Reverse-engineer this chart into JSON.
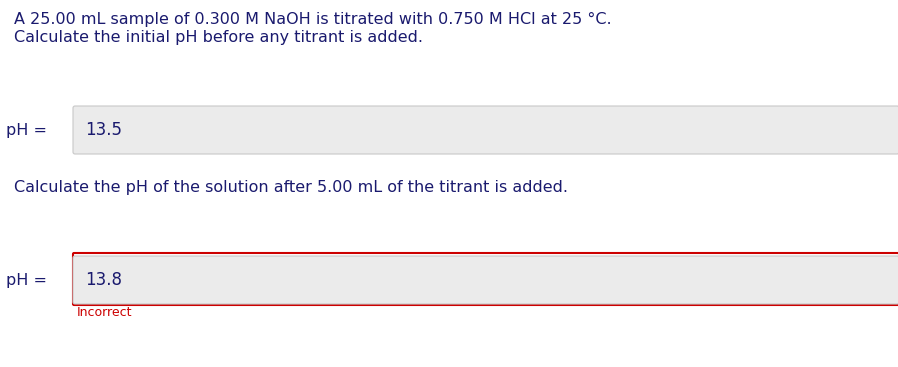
{
  "background_color": "#ffffff",
  "line1": "A 25.00 mL sample of 0.300 M NaOH is titrated with 0.750 M HCl at 25 °C.",
  "line2": "Calculate the initial pH before any titrant is added.",
  "label1": "pH = ",
  "value1": "13.5",
  "line3": "Calculate the pH of the solution after 5.00 mL of the titrant is added.",
  "label2": "pH = ",
  "value2": "13.8",
  "incorrect_text": "Incorrect",
  "text_color": "#1a1a6e",
  "incorrect_color": "#cc0000",
  "box_bg": "#ebebeb",
  "box_border_normal": "#c8c8c8",
  "box_border_incorrect": "#cc0000",
  "font_size_main": 11.5,
  "font_size_value": 12,
  "font_size_incorrect": 9
}
